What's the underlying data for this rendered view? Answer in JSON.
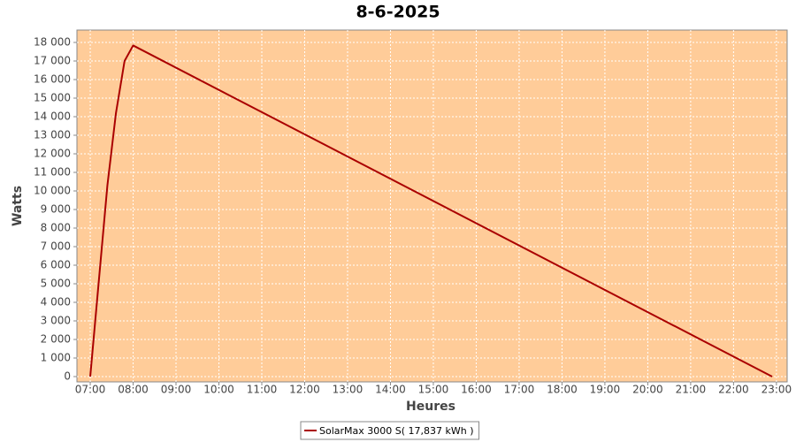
{
  "chart_data": {
    "type": "line",
    "title": "8-6-2025",
    "x_label": "Heures",
    "y_label": "Watts",
    "x": [
      7.0,
      7.4,
      7.6,
      7.8,
      8.0,
      22.9
    ],
    "series": [
      {
        "name": "SolarMax 3000 S( 17,837 kWh )",
        "color": "#aa0000",
        "values": [
          0,
          10300,
          14200,
          17000,
          17837,
          0
        ]
      }
    ],
    "xlim": [
      6.69,
      23.25
    ],
    "ylim": [
      -286,
      18667
    ],
    "xticks": [
      {
        "value": 7,
        "label": "07:00"
      },
      {
        "value": 8,
        "label": "08:00"
      },
      {
        "value": 9,
        "label": "09:00"
      },
      {
        "value": 10,
        "label": "10:00"
      },
      {
        "value": 11,
        "label": "11:00"
      },
      {
        "value": 12,
        "label": "12:00"
      },
      {
        "value": 13,
        "label": "13:00"
      },
      {
        "value": 14,
        "label": "14:00"
      },
      {
        "value": 15,
        "label": "15:00"
      },
      {
        "value": 16,
        "label": "16:00"
      },
      {
        "value": 17,
        "label": "17:00"
      },
      {
        "value": 18,
        "label": "18:00"
      },
      {
        "value": 19,
        "label": "19:00"
      },
      {
        "value": 20,
        "label": "20:00"
      },
      {
        "value": 21,
        "label": "21:00"
      },
      {
        "value": 22,
        "label": "22:00"
      },
      {
        "value": 23,
        "label": "23:00"
      }
    ],
    "yticks": [
      0,
      {
        "value": 1000,
        "label": "1 000"
      },
      {
        "value": 2000,
        "label": "2 000"
      },
      {
        "value": 3000,
        "label": "3 000"
      },
      {
        "value": 4000,
        "label": "4 000"
      },
      {
        "value": 5000,
        "label": "5 000"
      },
      {
        "value": 6000,
        "label": "6 000"
      },
      {
        "value": 7000,
        "label": "7 000"
      },
      {
        "value": 8000,
        "label": "8 000"
      },
      {
        "value": 9000,
        "label": "9 000"
      },
      {
        "value": 10000,
        "label": "10 000"
      },
      {
        "value": 11000,
        "label": "11 000"
      },
      {
        "value": 12000,
        "label": "12 000"
      },
      {
        "value": 13000,
        "label": "13 000"
      },
      {
        "value": 14000,
        "label": "14 000"
      },
      {
        "value": 15000,
        "label": "15 000"
      },
      {
        "value": 16000,
        "label": "16 000"
      },
      {
        "value": 17000,
        "label": "17 000"
      },
      {
        "value": 18000,
        "label": "18 000"
      }
    ],
    "grid": true,
    "plot_background": "#ffcc99",
    "legend_position": "bottom"
  }
}
